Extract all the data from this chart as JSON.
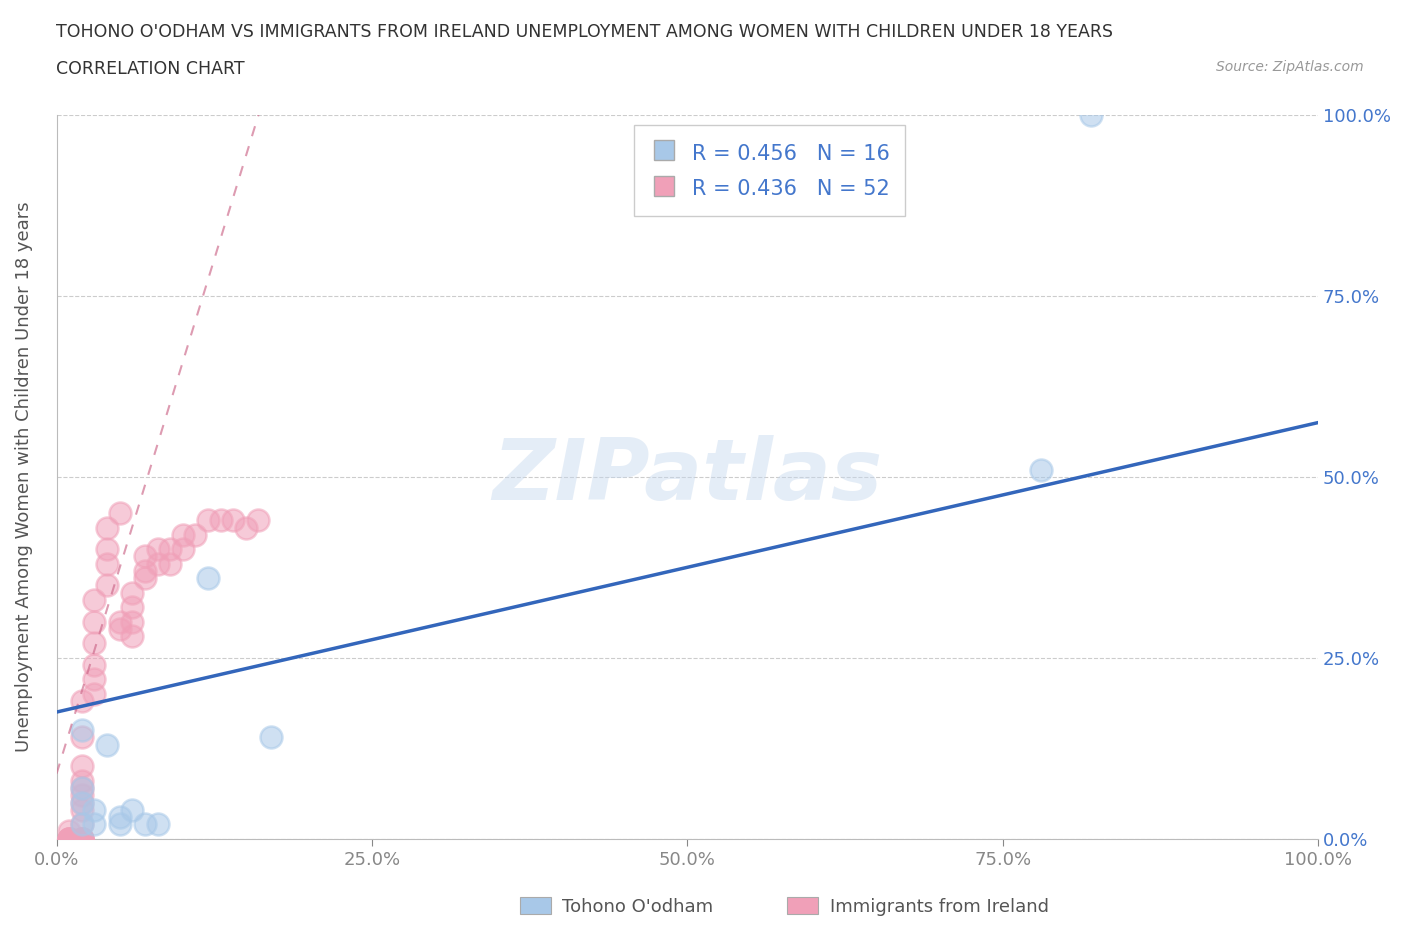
{
  "title_line1": "TOHONO O'ODHAM VS IMMIGRANTS FROM IRELAND UNEMPLOYMENT AMONG WOMEN WITH CHILDREN UNDER 18 YEARS",
  "title_line2": "CORRELATION CHART",
  "source_text": "Source: ZipAtlas.com",
  "ylabel": "Unemployment Among Women with Children Under 18 years",
  "watermark": "ZIPatlas",
  "legend_r1": "R = 0.456",
  "legend_n1": "N = 16",
  "legend_r2": "R = 0.436",
  "legend_n2": "N = 52",
  "blue_scatter_color": "#A8C8E8",
  "pink_scatter_color": "#F0A0B8",
  "line_blue": "#3366BB",
  "line_pink": "#CC6688",
  "grid_color": "#CCCCCC",
  "tick_color_right": "#4477CC",
  "tick_color_bottom": "#888888",
  "background": "#FFFFFF",
  "tohono_x": [
    0.02,
    0.02,
    0.02,
    0.03,
    0.04,
    0.05,
    0.06,
    0.07,
    0.08,
    0.12,
    0.17,
    0.78,
    0.82,
    0.02,
    0.03,
    0.05
  ],
  "tohono_y": [
    0.05,
    0.07,
    0.15,
    0.04,
    0.13,
    0.03,
    0.04,
    0.02,
    0.02,
    0.36,
    0.14,
    0.51,
    1.0,
    0.02,
    0.02,
    0.02
  ],
  "ireland_x": [
    0.01,
    0.01,
    0.01,
    0.01,
    0.01,
    0.02,
    0.02,
    0.02,
    0.02,
    0.02,
    0.02,
    0.02,
    0.02,
    0.02,
    0.02,
    0.02,
    0.02,
    0.02,
    0.03,
    0.03,
    0.03,
    0.03,
    0.03,
    0.03,
    0.04,
    0.04,
    0.04,
    0.04,
    0.05,
    0.05,
    0.05,
    0.06,
    0.06,
    0.06,
    0.06,
    0.07,
    0.07,
    0.07,
    0.08,
    0.08,
    0.09,
    0.09,
    0.1,
    0.1,
    0.11,
    0.12,
    0.13,
    0.14,
    0.15,
    0.16,
    0.01,
    0.02
  ],
  "ireland_y": [
    0.0,
    0.0,
    0.0,
    0.0,
    0.0,
    0.0,
    0.0,
    0.0,
    0.0,
    0.0,
    0.02,
    0.04,
    0.05,
    0.07,
    0.08,
    0.1,
    0.14,
    0.19,
    0.2,
    0.22,
    0.24,
    0.27,
    0.3,
    0.33,
    0.35,
    0.38,
    0.4,
    0.43,
    0.45,
    0.3,
    0.29,
    0.28,
    0.3,
    0.32,
    0.34,
    0.36,
    0.37,
    0.39,
    0.38,
    0.4,
    0.38,
    0.4,
    0.4,
    0.42,
    0.42,
    0.44,
    0.44,
    0.44,
    0.43,
    0.44,
    0.01,
    0.06
  ],
  "blue_line_x0": 0.0,
  "blue_line_y0": 0.175,
  "blue_line_x1": 1.0,
  "blue_line_y1": 0.575,
  "pink_line_x0": 0.0,
  "pink_line_y0": 0.09,
  "pink_line_x1": 0.16,
  "pink_line_y1": 1.0,
  "xlim": [
    0.0,
    1.0
  ],
  "ylim": [
    0.0,
    1.0
  ]
}
